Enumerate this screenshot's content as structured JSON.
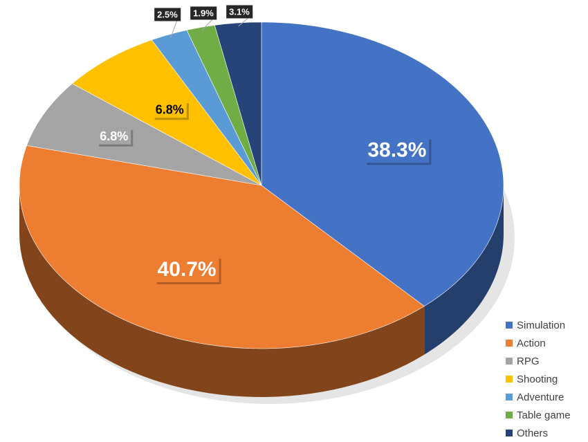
{
  "chart_data": {
    "type": "pie",
    "title": "",
    "slices": [
      {
        "name": "Simulation",
        "value": 38.3,
        "label": "38.3%",
        "color": "#4472c4"
      },
      {
        "name": "Action",
        "value": 40.7,
        "label": "40.7%",
        "color": "#ed7d31"
      },
      {
        "name": "RPG",
        "value": 6.8,
        "label": "6.8%",
        "color": "#a5a5a5"
      },
      {
        "name": "Shooting",
        "value": 6.8,
        "label": "6.8%",
        "color": "#ffc000"
      },
      {
        "name": "Adventure",
        "value": 2.5,
        "label": "2.5%",
        "color": "#5b9bd5"
      },
      {
        "name": "Table game",
        "value": 1.9,
        "label": "1.9%",
        "color": "#70ad47"
      },
      {
        "name": "Others",
        "value": 3.1,
        "label": "3.1%",
        "color": "#264478"
      }
    ],
    "legend_position": "bottom-right",
    "style": "3d-pie"
  }
}
